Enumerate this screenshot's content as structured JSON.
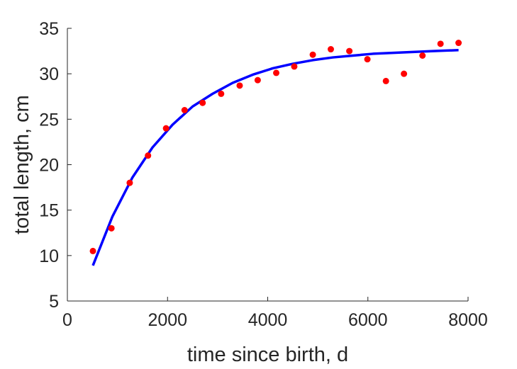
{
  "chart_data": {
    "type": "scatter",
    "title": "",
    "xlabel": "time since birth, d",
    "ylabel": "total length, cm",
    "xlim": [
      0,
      8000
    ],
    "ylim": [
      5,
      35
    ],
    "xticks": [
      0,
      2000,
      4000,
      6000,
      8000
    ],
    "yticks": [
      5,
      10,
      15,
      20,
      25,
      30,
      35
    ],
    "grid": false,
    "legend": "none",
    "series": [
      {
        "kind": "points",
        "color": "#ff0000",
        "x": [
          510,
          880,
          1245,
          1610,
          1970,
          2340,
          2700,
          3070,
          3440,
          3800,
          4170,
          4530,
          4900,
          5260,
          5630,
          5990,
          6360,
          6720,
          7090,
          7450,
          7810
        ],
        "y": [
          10.5,
          13.0,
          18.0,
          21.0,
          24.0,
          26.0,
          26.8,
          27.8,
          28.7,
          29.3,
          30.1,
          30.8,
          32.1,
          32.7,
          32.5,
          31.6,
          29.2,
          30.0,
          32.0,
          33.3,
          33.4
        ]
      },
      {
        "kind": "fit-curve",
        "color": "#0000ff",
        "x": [
          510,
          900,
          1300,
          1700,
          2100,
          2500,
          2900,
          3300,
          3700,
          4100,
          4500,
          4900,
          5300,
          5700,
          6100,
          6500,
          6900,
          7300,
          7810
        ],
        "y": [
          8.9,
          14.3,
          18.6,
          21.9,
          24.4,
          26.4,
          27.8,
          29.0,
          29.9,
          30.6,
          31.1,
          31.5,
          31.8,
          32.0,
          32.2,
          32.3,
          32.4,
          32.5,
          32.6
        ]
      }
    ]
  }
}
